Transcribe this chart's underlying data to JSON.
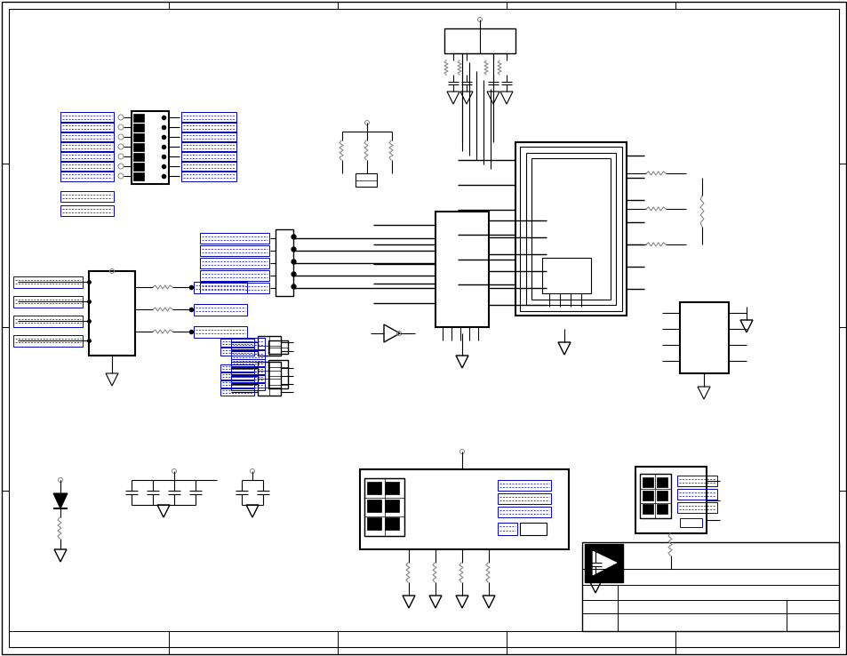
{
  "bg_color": "#ffffff",
  "line_color": "#000000",
  "blue_color": "#0000bb",
  "gray_color": "#888888"
}
